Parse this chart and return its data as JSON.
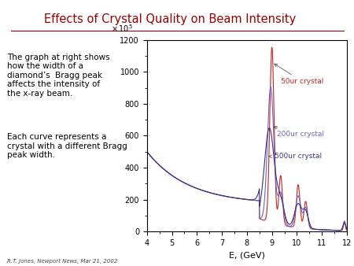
{
  "title": "Effects of Crystal Quality on Beam Intensity",
  "title_color": "#990000",
  "xlabel": "E, (GeV)",
  "xlim": [
    4,
    12
  ],
  "ylim": [
    0,
    1200
  ],
  "yticks": [
    0,
    200,
    400,
    600,
    800,
    1000,
    1200
  ],
  "xticks": [
    4,
    5,
    6,
    7,
    8,
    9,
    10,
    11,
    12
  ],
  "left_text_1": "The graph at right shows\nhow the width of a\ndiamond’s  Bragg peak\naffects the intensity of\nthe x-ray beam.",
  "left_text_2": "Each curve represents a\ncrystal with a different Bragg\npeak width.",
  "footer_text": "R.T. Jones, Newport News, Mar 21, 2002",
  "curve_50ur_color": "#cc2222",
  "curve_200ur_color": "#6666cc",
  "curve_500ur_color": "#333388",
  "label_50ur": "50ur crystal",
  "label_200ur": "200ur crystal",
  "label_500ur": "500ur crystal"
}
